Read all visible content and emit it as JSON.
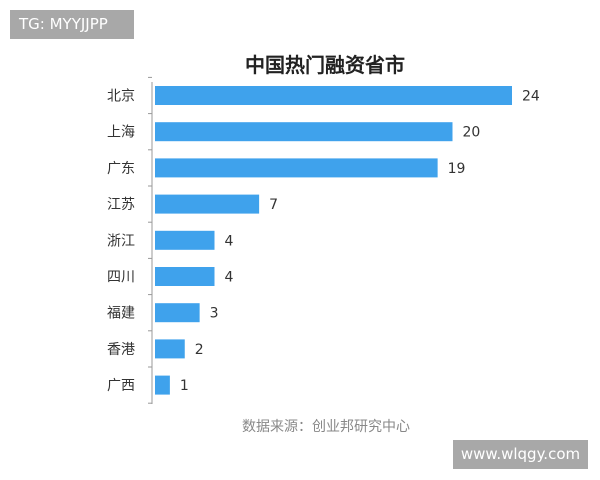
{
  "badge": {
    "tag": "TG: MYYJJPP"
  },
  "watermark": {
    "site": "www.wlqgy.com"
  },
  "chart_data": {
    "type": "bar",
    "orientation": "horizontal",
    "title": "中国热门融资省市",
    "categories": [
      "北京",
      "上海",
      "广东",
      "江苏",
      "浙江",
      "四川",
      "福建",
      "香港",
      "广西"
    ],
    "values": [
      24,
      20,
      19,
      7,
      4,
      4,
      3,
      2,
      1
    ],
    "xlim": [
      0,
      24
    ],
    "grid": false,
    "legend": "none",
    "bar_color": "#3fa2ec",
    "source": "数据来源：创业邦研究中心"
  }
}
